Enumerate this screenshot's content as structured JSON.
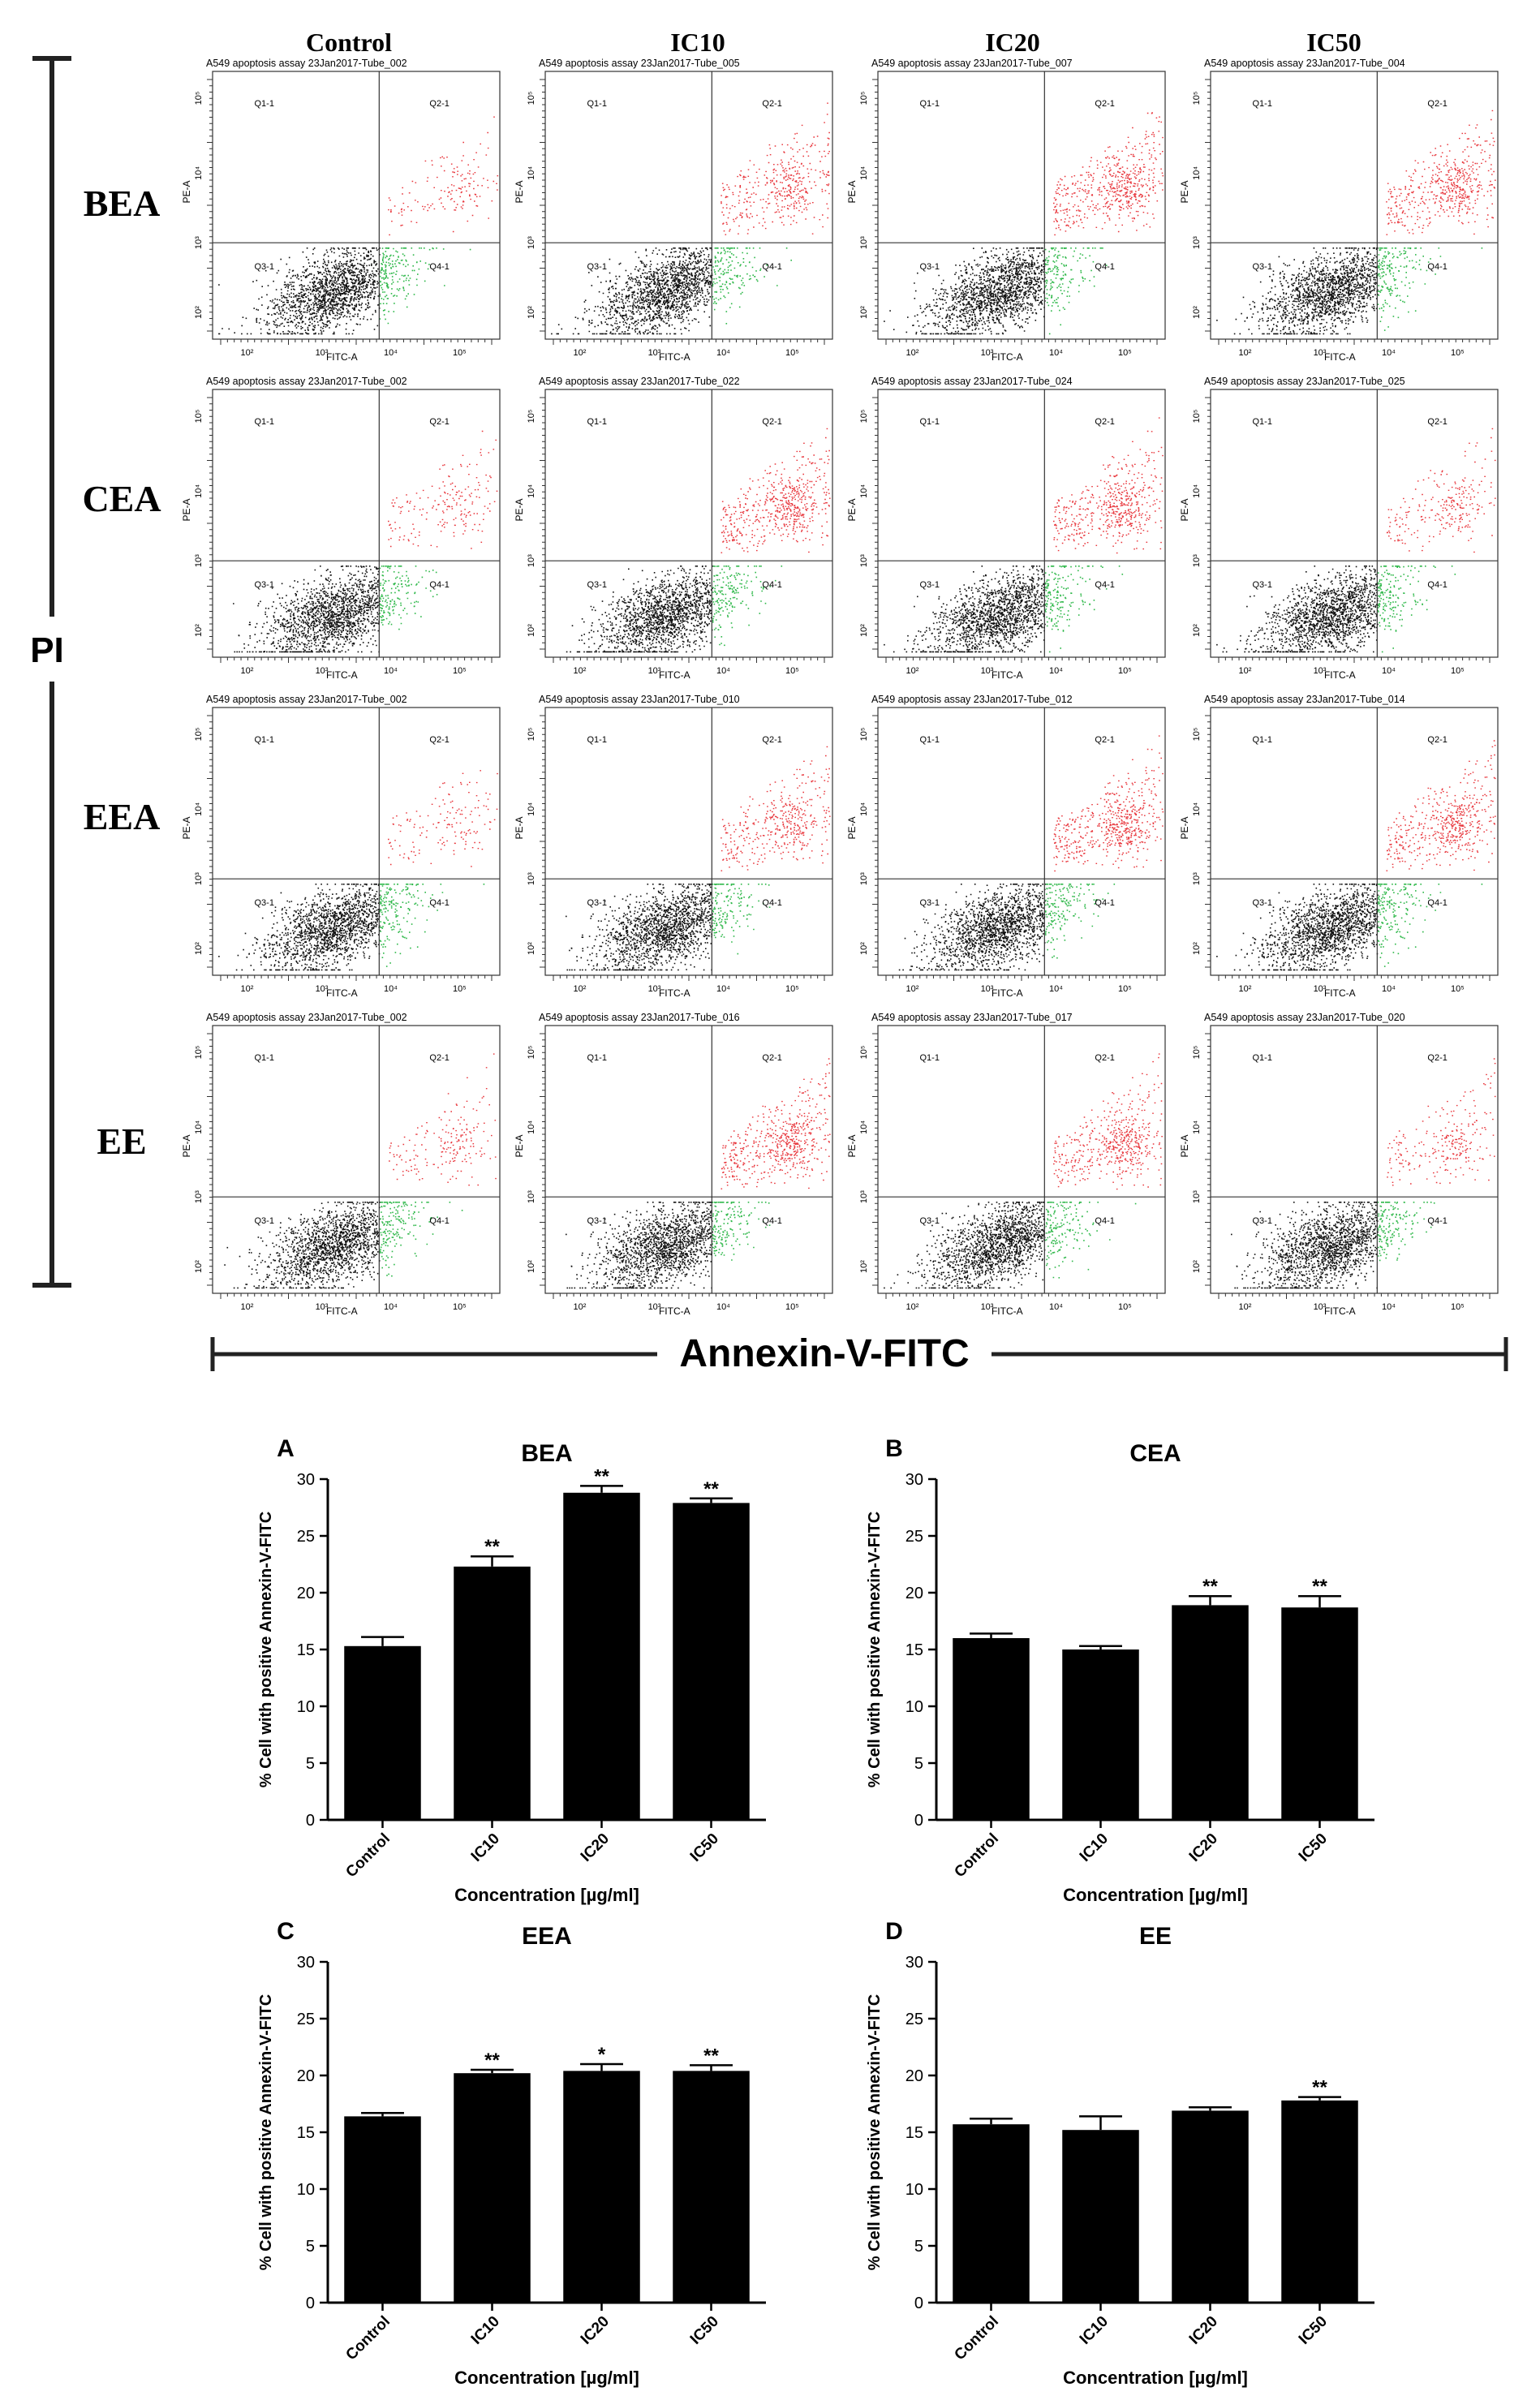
{
  "figure": {
    "columns": [
      "Control",
      "IC10",
      "IC20",
      "IC50"
    ],
    "rows": [
      "BEA",
      "CEA",
      "EEA",
      "EE"
    ],
    "y_axis_label": "PI",
    "x_axis_label": "Annexin-V-FITC"
  },
  "flow_panels": [
    {
      "row": "BEA",
      "col": "Control",
      "title": "A549 apoptosis assay 23Jan2017-Tube_002"
    },
    {
      "row": "BEA",
      "col": "IC10",
      "title": "A549 apoptosis assay 23Jan2017-Tube_005"
    },
    {
      "row": "BEA",
      "col": "IC20",
      "title": "A549 apoptosis assay 23Jan2017-Tube_007"
    },
    {
      "row": "BEA",
      "col": "IC50",
      "title": "A549 apoptosis assay 23Jan2017-Tube_004"
    },
    {
      "row": "CEA",
      "col": "Control",
      "title": "A549 apoptosis assay 23Jan2017-Tube_002"
    },
    {
      "row": "CEA",
      "col": "IC10",
      "title": "A549 apoptosis assay 23Jan2017-Tube_022"
    },
    {
      "row": "CEA",
      "col": "IC20",
      "title": "A549 apoptosis assay 23Jan2017-Tube_024"
    },
    {
      "row": "CEA",
      "col": "IC50",
      "title": "A549 apoptosis assay 23Jan2017-Tube_025"
    },
    {
      "row": "EEA",
      "col": "Control",
      "title": "A549 apoptosis assay 23Jan2017-Tube_002"
    },
    {
      "row": "EEA",
      "col": "IC10",
      "title": "A549 apoptosis assay 23Jan2017-Tube_010"
    },
    {
      "row": "EEA",
      "col": "IC20",
      "title": "A549 apoptosis assay 23Jan2017-Tube_012"
    },
    {
      "row": "EEA",
      "col": "IC50",
      "title": "A549 apoptosis assay 23Jan2017-Tube_014"
    },
    {
      "row": "EE",
      "col": "Control",
      "title": "A549 apoptosis assay 23Jan2017-Tube_002"
    },
    {
      "row": "EE",
      "col": "IC10",
      "title": "A549 apoptosis assay 23Jan2017-Tube_016"
    },
    {
      "row": "EE",
      "col": "IC20",
      "title": "A549 apoptosis assay 23Jan2017-Tube_017"
    },
    {
      "row": "EE",
      "col": "IC50",
      "title": "A549 apoptosis assay 23Jan2017-Tube_020"
    }
  ],
  "flow_labels": {
    "quadrants": [
      "Q1-1",
      "Q2-1",
      "Q3-1",
      "Q4-1"
    ],
    "x_axis": "FITC-A",
    "y_axis": "PE-A",
    "decade_ticks": [
      "10²",
      "10³",
      "10⁴",
      "10⁵"
    ]
  },
  "chart_data": [
    {
      "type": "bar",
      "panel_letter": "A",
      "title": "BEA",
      "categories": [
        "Control",
        "IC10",
        "IC20",
        "IC50"
      ],
      "values": [
        15.3,
        22.3,
        28.8,
        27.9
      ],
      "errors": [
        0.8,
        0.9,
        0.6,
        0.4
      ],
      "significance": [
        "",
        "**",
        "**",
        "**"
      ],
      "ylabel": "% Cell with positive Annexin-V-FITC",
      "xlabel": "Concentration [µg/ml]",
      "ylim": [
        0,
        30
      ],
      "yticks": [
        0,
        5,
        10,
        15,
        20,
        25,
        30
      ]
    },
    {
      "type": "bar",
      "panel_letter": "B",
      "title": "CEA",
      "categories": [
        "Control",
        "IC10",
        "IC20",
        "IC50"
      ],
      "values": [
        16.0,
        15.0,
        18.9,
        18.7
      ],
      "errors": [
        0.4,
        0.3,
        0.8,
        1.0
      ],
      "significance": [
        "",
        "",
        "**",
        "**"
      ],
      "ylabel": "% Cell with positive Annexin-V-FITC",
      "xlabel": "Concentration [µg/ml]",
      "ylim": [
        0,
        30
      ],
      "yticks": [
        0,
        5,
        10,
        15,
        20,
        25,
        30
      ]
    },
    {
      "type": "bar",
      "panel_letter": "C",
      "title": "EEA",
      "categories": [
        "Control",
        "IC10",
        "IC20",
        "IC50"
      ],
      "values": [
        16.4,
        20.2,
        20.4,
        20.4
      ],
      "errors": [
        0.3,
        0.3,
        0.6,
        0.5
      ],
      "significance": [
        "",
        "**",
        "*",
        "**"
      ],
      "ylabel": "% Cell with positive Annexin-V-FITC",
      "xlabel": "Concentration [µg/ml]",
      "ylim": [
        0,
        30
      ],
      "yticks": [
        0,
        5,
        10,
        15,
        20,
        25,
        30
      ]
    },
    {
      "type": "bar",
      "panel_letter": "D",
      "title": "EE",
      "categories": [
        "Control",
        "IC10",
        "IC20",
        "IC50"
      ],
      "values": [
        15.7,
        15.2,
        16.9,
        17.8
      ],
      "errors": [
        0.5,
        1.2,
        0.3,
        0.3
      ],
      "significance": [
        "",
        "",
        "",
        "**"
      ],
      "ylabel": "% Cell with positive Annexin-V-FITC",
      "xlabel": "Concentration [µg/ml]",
      "ylim": [
        0,
        30
      ],
      "yticks": [
        0,
        5,
        10,
        15,
        20,
        25,
        30
      ]
    }
  ]
}
